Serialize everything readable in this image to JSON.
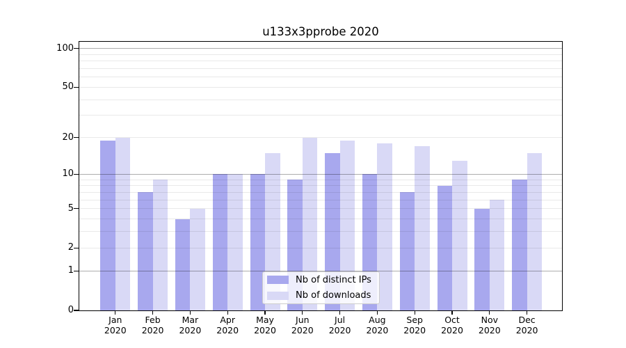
{
  "chart_data": {
    "type": "bar",
    "title": "u133x3pprobe 2020",
    "categories": [
      "Jan",
      "Feb",
      "Mar",
      "Apr",
      "May",
      "Jun",
      "Jul",
      "Aug",
      "Sep",
      "Oct",
      "Nov",
      "Dec"
    ],
    "category_year": "2020",
    "series": [
      {
        "name": "Nb of distinct IPs",
        "color": "#a8a8ee",
        "values": [
          19,
          7,
          4,
          10,
          10,
          9,
          15,
          10,
          7,
          8,
          5,
          9
        ]
      },
      {
        "name": "Nb of downloads",
        "color": "#d9d9f6",
        "values": [
          20,
          9,
          5,
          10,
          15,
          20,
          19,
          18,
          17,
          13,
          6,
          15
        ]
      }
    ],
    "xlabel": "",
    "ylabel": "",
    "y_axis": {
      "scale": "log10(1+y)",
      "labeled_ticks": [
        100,
        50,
        20,
        10,
        5,
        2,
        1,
        0
      ],
      "major_gridlines": [
        1,
        10,
        100
      ],
      "minor_gridlines": [
        2,
        3,
        4,
        5,
        6,
        7,
        8,
        9,
        20,
        30,
        40,
        50,
        60,
        70,
        80,
        90
      ],
      "ylim": [
        0,
        114
      ]
    },
    "legend": {
      "position": "lower center",
      "entries": [
        "Nb of distinct IPs",
        "Nb of downloads"
      ]
    },
    "grid": true,
    "colors": {
      "background": "#ffffff",
      "bar_distinct_ips": "#a8a8ee",
      "bar_downloads": "#d9d9f6",
      "major_grid": "#adadad",
      "minor_grid": "#e9e9e9",
      "spine": "#000000",
      "legend_border": "#cccccc"
    }
  }
}
